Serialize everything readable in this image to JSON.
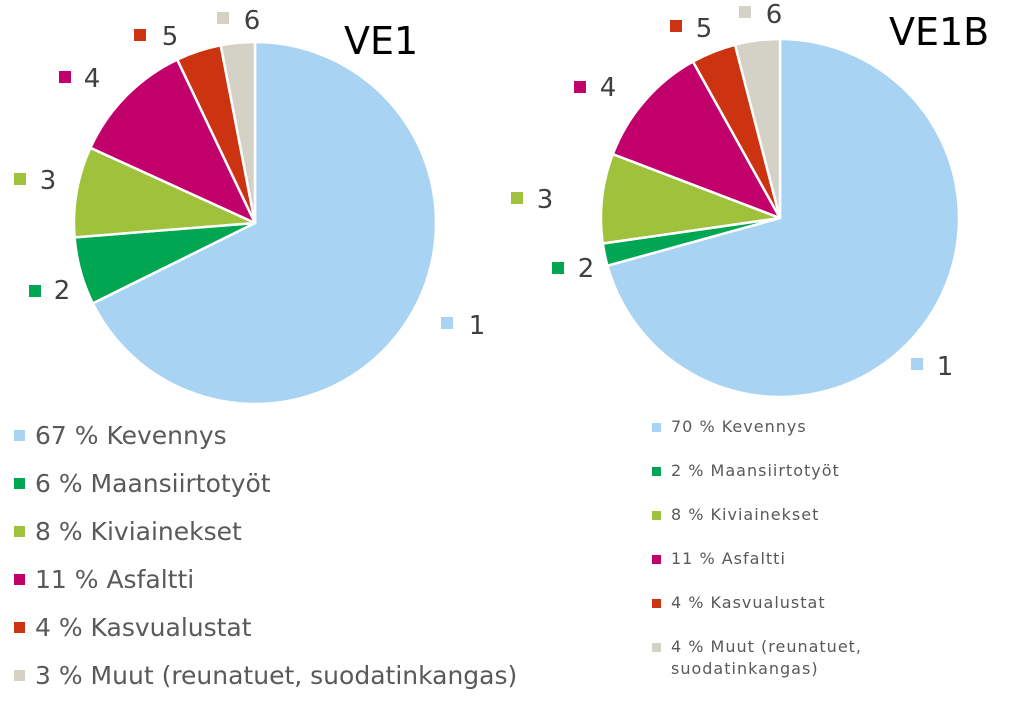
{
  "chart_data": [
    {
      "type": "pie",
      "title": "VE1",
      "slices": [
        {
          "label": "1",
          "value": 67,
          "legend": "67 % Kevennys",
          "color": "#a9d3f2"
        },
        {
          "label": "2",
          "value": 6,
          "legend": "6 % Maansiirtotyöt",
          "color": "#00a651"
        },
        {
          "label": "3",
          "value": 8,
          "legend": "8 % Kiviainekset",
          "color": "#9fc13b"
        },
        {
          "label": "4",
          "value": 11,
          "legend": "11 % Asfaltti",
          "color": "#c2006b"
        },
        {
          "label": "5",
          "value": 4,
          "legend": "4 % Kasvualustat",
          "color": "#cc3411"
        },
        {
          "label": "6",
          "value": 3,
          "legend": "3 % Muut (reunatuet, suodatinkangas)",
          "color": "#d4d1c7"
        }
      ]
    },
    {
      "type": "pie",
      "title": "VE1B",
      "slices": [
        {
          "label": "1",
          "value": 70,
          "legend": "70 % Kevennys",
          "color": "#a9d3f2"
        },
        {
          "label": "2",
          "value": 2,
          "legend": "2 % Maansiirtotyöt",
          "color": "#00a651"
        },
        {
          "label": "3",
          "value": 8,
          "legend": "8 % Kiviainekset",
          "color": "#9fc13b"
        },
        {
          "label": "4",
          "value": 11,
          "legend": "11 % Asfaltti",
          "color": "#c2006b"
        },
        {
          "label": "5",
          "value": 4,
          "legend": "4 % Kasvualustat",
          "color": "#cc3411"
        },
        {
          "label": "6",
          "value": 4,
          "legend": "4 % Muut (reunatuet, suodatinkangas)",
          "legend_lines": [
            "4 % Muut (reunatuet,",
            "suodatinkangas)"
          ],
          "color": "#d4d1c7"
        }
      ]
    }
  ]
}
